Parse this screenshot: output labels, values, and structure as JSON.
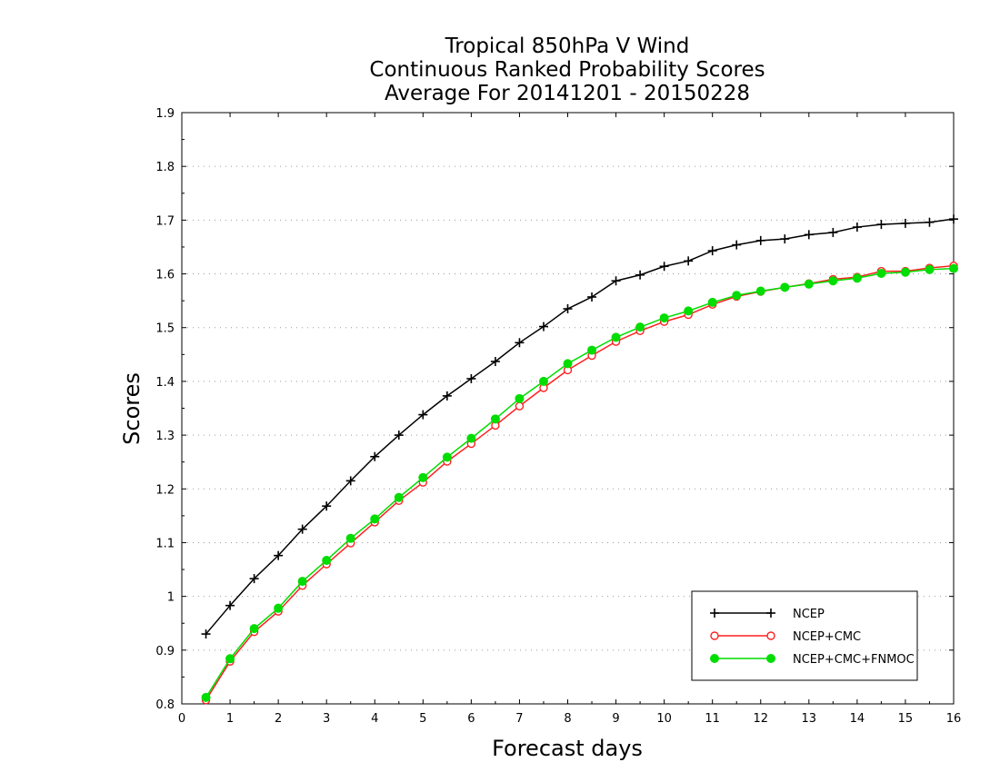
{
  "chart_data": {
    "type": "line",
    "title_lines": [
      "Tropical 850hPa V Wind",
      "Continuous Ranked Probability Scores",
      "Average For 20141201 - 20150228"
    ],
    "xlabel": "Forecast days",
    "ylabel": "Scores",
    "xlim": [
      0,
      16
    ],
    "ylim": [
      0.8,
      1.9
    ],
    "xticks": [
      0,
      1,
      2,
      3,
      4,
      5,
      6,
      7,
      8,
      9,
      10,
      11,
      12,
      13,
      14,
      15,
      16
    ],
    "yticks": [
      0.8,
      0.9,
      1,
      1.1,
      1.2,
      1.3,
      1.4,
      1.5,
      1.6,
      1.7,
      1.8,
      1.9
    ],
    "ytick_labels": [
      "0.8",
      "0.9",
      "1",
      "1.1",
      "1.2",
      "1.3",
      "1.4",
      "1.5",
      "1.6",
      "1.7",
      "1.8",
      "1.9"
    ],
    "grid": "horizontal dotted",
    "legend_position": "bottom-right",
    "x": [
      0.5,
      1,
      1.5,
      2,
      2.5,
      3,
      3.5,
      4,
      4.5,
      5,
      5.5,
      6,
      6.5,
      7,
      7.5,
      8,
      8.5,
      9,
      9.5,
      10,
      10.5,
      11,
      11.5,
      12,
      12.5,
      13,
      13.5,
      14,
      14.5,
      15,
      15.5,
      16
    ],
    "series": [
      {
        "name": "NCEP",
        "color": "#000000",
        "marker": "plus",
        "values": [
          0.93,
          0.983,
          1.033,
          1.076,
          1.125,
          1.168,
          1.215,
          1.26,
          1.3,
          1.338,
          1.373,
          1.405,
          1.437,
          1.472,
          1.502,
          1.535,
          1.557,
          1.587,
          1.598,
          1.614,
          1.624,
          1.643,
          1.654,
          1.662,
          1.665,
          1.673,
          1.677,
          1.687,
          1.692,
          1.694,
          1.696,
          1.702
        ]
      },
      {
        "name": "NCEP+CMC",
        "color": "#ff2020",
        "marker": "open-circle",
        "values": [
          0.807,
          0.879,
          0.934,
          0.972,
          1.02,
          1.06,
          1.099,
          1.138,
          1.178,
          1.212,
          1.251,
          1.284,
          1.318,
          1.354,
          1.388,
          1.421,
          1.448,
          1.474,
          1.494,
          1.511,
          1.524,
          1.543,
          1.558,
          1.567,
          1.575,
          1.582,
          1.59,
          1.594,
          1.605,
          1.605,
          1.611,
          1.615
        ]
      },
      {
        "name": "NCEP+CMC+FNMOC",
        "color": "#00dd00",
        "marker": "filled-circle",
        "values": [
          0.812,
          0.884,
          0.94,
          0.978,
          1.028,
          1.067,
          1.108,
          1.144,
          1.184,
          1.221,
          1.259,
          1.294,
          1.33,
          1.368,
          1.4,
          1.433,
          1.458,
          1.482,
          1.501,
          1.518,
          1.531,
          1.547,
          1.56,
          1.568,
          1.575,
          1.581,
          1.587,
          1.592,
          1.601,
          1.603,
          1.608,
          1.61
        ]
      }
    ]
  }
}
